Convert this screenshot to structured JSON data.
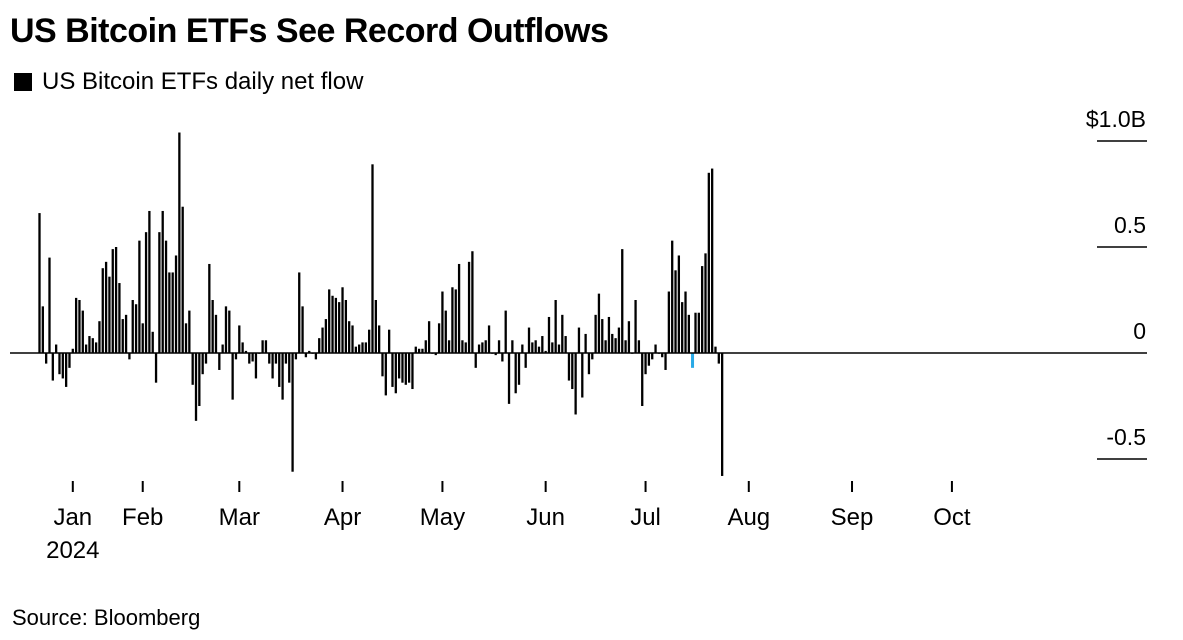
{
  "title": "US Bitcoin ETFs See Record Outflows",
  "legend": {
    "label": "US Bitcoin ETFs daily net flow",
    "color": "#000000"
  },
  "source": "Source: Bloomberg",
  "colors": {
    "bar": "#000000",
    "highlight": "#29a9e6",
    "zero_line": "#000000",
    "gridline": "#000000"
  },
  "chart_data": {
    "type": "bar",
    "title": "US Bitcoin ETFs See Record Outflows",
    "xlabel": "",
    "ylabel": "US Bitcoin ETFs daily net flow",
    "units": "$B",
    "ylim": [
      -0.6,
      1.0
    ],
    "y_ticks": [
      {
        "value": 1.0,
        "label": "$1.0B"
      },
      {
        "value": 0.5,
        "label": "0.5"
      },
      {
        "value": 0,
        "label": "0"
      },
      {
        "value": -0.5,
        "label": "-0.5"
      }
    ],
    "x_ticks": [
      {
        "day": 11,
        "label": "Jan",
        "sublabel": "2024"
      },
      {
        "day": 32,
        "label": "Feb"
      },
      {
        "day": 61,
        "label": "Mar"
      },
      {
        "day": 92,
        "label": "Apr"
      },
      {
        "day": 122,
        "label": "May"
      },
      {
        "day": 153,
        "label": "Jun"
      },
      {
        "day": 183,
        "label": "Jul"
      },
      {
        "day": 214,
        "label": "Aug"
      },
      {
        "day": 245,
        "label": "Sep"
      },
      {
        "day": 275,
        "label": "Oct"
      }
    ],
    "highlight_index": 196,
    "values": [
      0.66,
      0.22,
      -0.05,
      0.45,
      -0.13,
      0.04,
      -0.1,
      -0.12,
      -0.16,
      -0.07,
      0.02,
      0.26,
      0.25,
      0.2,
      0.04,
      0.08,
      0.07,
      0.05,
      0.15,
      0.4,
      0.43,
      0.36,
      0.49,
      0.5,
      0.33,
      0.16,
      0.18,
      -0.03,
      0.25,
      0.23,
      0.53,
      0.14,
      0.57,
      0.67,
      0.1,
      -0.14,
      0.57,
      0.67,
      0.53,
      0.38,
      0.38,
      0.46,
      1.04,
      0.69,
      0.14,
      0.2,
      -0.15,
      -0.32,
      -0.25,
      -0.1,
      -0.05,
      0.42,
      0.25,
      0.18,
      -0.08,
      0.04,
      0.22,
      0.2,
      -0.22,
      -0.03,
      0.13,
      0.05,
      0.01,
      -0.05,
      -0.04,
      -0.12,
      0.0,
      0.06,
      0.06,
      -0.05,
      -0.12,
      -0.05,
      -0.16,
      -0.22,
      -0.05,
      -0.14,
      -0.56,
      -0.03,
      0.38,
      0.22,
      -0.02,
      0.01,
      0.0,
      -0.03,
      0.07,
      0.12,
      0.16,
      0.3,
      0.27,
      0.26,
      0.24,
      0.31,
      0.25,
      0.15,
      0.13,
      0.03,
      0.04,
      0.05,
      0.05,
      0.11,
      0.89,
      0.25,
      0.13,
      -0.11,
      -0.2,
      0.11,
      -0.16,
      -0.19,
      -0.12,
      -0.14,
      -0.15,
      -0.14,
      -0.17,
      0.03,
      0.02,
      0.02,
      0.06,
      0.15,
      0.0,
      -0.01,
      0.14,
      0.29,
      0.2,
      0.06,
      0.31,
      0.3,
      0.42,
      0.06,
      0.05,
      0.43,
      0.48,
      -0.07,
      0.04,
      0.05,
      0.06,
      0.13,
      0.0,
      -0.01,
      0.06,
      -0.04,
      0.2,
      -0.24,
      0.06,
      -0.19,
      -0.15,
      0.04,
      -0.07,
      0.12,
      0.05,
      0.06,
      0.03,
      0.08,
      0.01,
      0.17,
      0.05,
      0.25,
      0.04,
      0.18,
      0.08,
      -0.13,
      -0.17,
      -0.29,
      0.12,
      -0.21,
      0.09,
      -0.1,
      -0.03,
      0.18,
      0.28,
      0.16,
      0.06,
      0.17,
      0.09,
      0.07,
      0.12,
      0.49,
      0.06,
      0.15,
      0.0,
      0.25,
      0.06,
      -0.25,
      -0.1,
      -0.06,
      -0.03,
      0.04,
      0.0,
      -0.02,
      -0.08,
      0.29,
      0.53,
      0.39,
      0.46,
      0.24,
      0.29,
      0.18,
      -0.07,
      0.19,
      0.19,
      0.41,
      0.47,
      0.85,
      0.87,
      0.03,
      -0.05,
      -0.58
    ]
  }
}
